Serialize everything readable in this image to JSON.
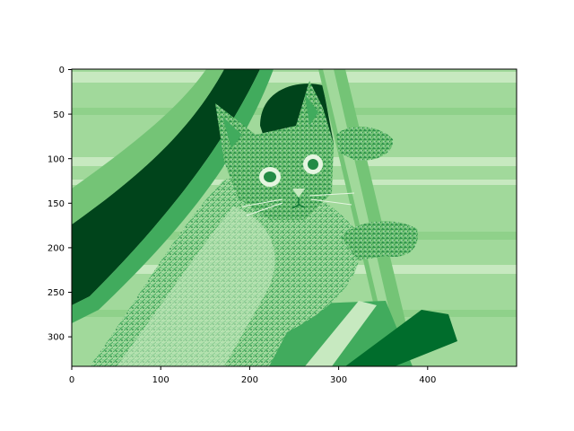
{
  "image": {
    "subject": "cat",
    "colormap": "Greens",
    "xlim": [
      0,
      500
    ],
    "ylim": [
      333,
      0
    ]
  },
  "axes": {
    "x_ticks": [
      "0",
      "100",
      "200",
      "300",
      "400"
    ],
    "y_ticks": [
      "0",
      "50",
      "100",
      "150",
      "200",
      "250",
      "300"
    ]
  },
  "colors": {
    "darkest": "#00441b",
    "dark": "#006d2c",
    "mid": "#41ab5d",
    "light": "#74c476",
    "lighter": "#a1d99b",
    "pale": "#c7e9c0",
    "palest": "#e5f5e0"
  }
}
